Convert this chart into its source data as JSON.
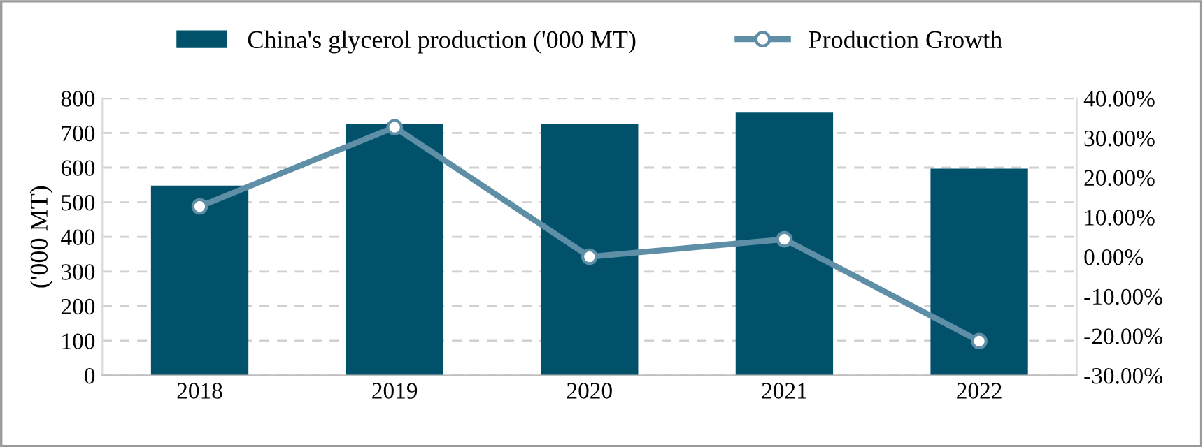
{
  "chart_data": {
    "type": "bar",
    "categories": [
      "2018",
      "2019",
      "2020",
      "2021",
      "2022"
    ],
    "ylabel": "('000 MT)",
    "series": [
      {
        "name": "China's glycerol production ('000 MT)",
        "color": "#02516b",
        "values": [
          548,
          727,
          727,
          759,
          597
        ]
      },
      {
        "name": "Production Growth",
        "type": "line",
        "axis": "y2",
        "color": "#5e8fa7",
        "marker": "circle",
        "values": [
          12.7,
          32.7,
          0.0,
          4.4,
          -21.3
        ]
      }
    ],
    "ylim": [
      0,
      800
    ],
    "yticks": [
      0,
      100,
      200,
      300,
      400,
      500,
      600,
      700,
      800
    ],
    "y2lim": [
      -30,
      40
    ],
    "y2ticks": [
      {
        "value": -30,
        "label": "-30.00%"
      },
      {
        "value": -20,
        "label": "-20.00%"
      },
      {
        "value": -10,
        "label": "-10.00%"
      },
      {
        "value": 0,
        "label": "0.00%"
      },
      {
        "value": 10,
        "label": "10.00%"
      },
      {
        "value": 20,
        "label": "20.00%"
      },
      {
        "value": 30,
        "label": "30.00%"
      },
      {
        "value": 40,
        "label": "40.00%"
      }
    ],
    "grid": "y",
    "legend": "top"
  }
}
